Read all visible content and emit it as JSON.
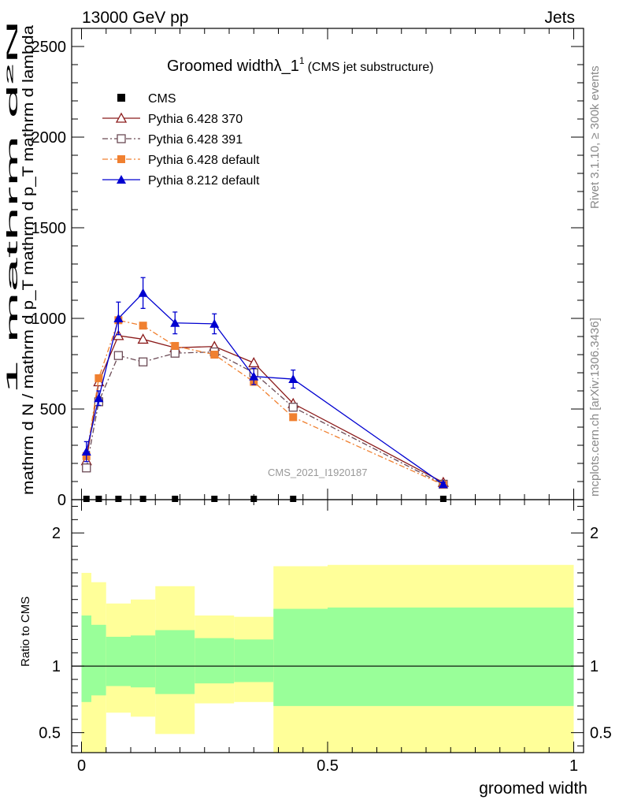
{
  "header": {
    "left": "13000 GeV pp",
    "right": "Jets"
  },
  "side_labels": {
    "rivet": "Rivet 3.1.10, ≥ 300k events",
    "mcplots": "mcplots.cern.ch [arXiv:1306.3436]"
  },
  "colors": {
    "cms": "#000000",
    "py370": "#8b1a1a",
    "py391": "#6b4a55",
    "pydefault": "#f08030",
    "py8": "#0000d0",
    "band_inner": "#99ff99",
    "band_outer": "#ffff99"
  },
  "chart_data": [
    {
      "type": "line",
      "title": "Groomed widthλ_1",
      "title_sup": "1",
      "subtitle": "(CMS jet substructure)",
      "watermark": "CMS_2021_I1920187",
      "ylabel_numerator": "1    mathrm d²N",
      "ylabel_denominator": "mathrm d N / mathrm d p_T mathrm d p_T mathrm d lambda",
      "xlim": [
        -0.02,
        1.02
      ],
      "ylim": [
        0,
        2600
      ],
      "yticks": [
        0,
        500,
        1000,
        1500,
        2000,
        2500
      ],
      "ytick_labels": [
        "0",
        "500",
        "1000",
        "1500",
        "2000",
        "2500"
      ],
      "legend_position": "top-left",
      "x": [
        0.01,
        0.035,
        0.075,
        0.125,
        0.19,
        0.27,
        0.35,
        0.43,
        0.735
      ],
      "series": [
        {
          "name": "CMS",
          "key": "cms",
          "marker": "square-filled",
          "dash": "none",
          "values": [
            0,
            0,
            0,
            0,
            0,
            0,
            0,
            0,
            0
          ]
        },
        {
          "name": "Pythia 6.428 370",
          "key": "py370",
          "marker": "triangle-open",
          "dash": "solid",
          "values": [
            215,
            650,
            905,
            885,
            838,
            845,
            755,
            530,
            95
          ]
        },
        {
          "name": "Pythia 6.428 391",
          "key": "py391",
          "marker": "square-open",
          "dash": "dashdot",
          "values": [
            175,
            540,
            795,
            760,
            808,
            815,
            700,
            510,
            85
          ]
        },
        {
          "name": "Pythia 6.428 default",
          "key": "pydefault",
          "marker": "square-filled",
          "dash": "dashdot",
          "values": [
            240,
            670,
            990,
            960,
            848,
            800,
            650,
            455,
            82
          ]
        },
        {
          "name": "Pythia 8.212 default",
          "key": "py8",
          "marker": "triangle-filled",
          "dash": "solid",
          "values": [
            265,
            560,
            1000,
            1140,
            975,
            970,
            680,
            665,
            85
          ],
          "errors": [
            55,
            40,
            90,
            85,
            60,
            55,
            45,
            50,
            12
          ]
        }
      ]
    },
    {
      "type": "area",
      "ylabel": "Ratio to CMS",
      "xlabel": "groomed width",
      "xlim": [
        -0.02,
        1.02
      ],
      "ylim": [
        0.35,
        2.25
      ],
      "yticks": [
        0.5,
        1,
        2
      ],
      "ytick_labels": [
        "0.5",
        "1",
        "2"
      ],
      "xticks": [
        0,
        0.5,
        1
      ],
      "xtick_labels": [
        "0",
        "0.5",
        "1"
      ],
      "reference_line": 1,
      "bins": [
        {
          "lo": 0.0,
          "hi": 0.02,
          "outer": [
            0.35,
            1.7
          ],
          "inner": [
            0.73,
            1.38
          ]
        },
        {
          "lo": 0.02,
          "hi": 0.05,
          "outer": [
            0.35,
            1.63
          ],
          "inner": [
            0.78,
            1.31
          ]
        },
        {
          "lo": 0.05,
          "hi": 0.1,
          "outer": [
            0.65,
            1.47
          ],
          "inner": [
            0.85,
            1.22
          ]
        },
        {
          "lo": 0.1,
          "hi": 0.15,
          "outer": [
            0.62,
            1.5
          ],
          "inner": [
            0.84,
            1.23
          ]
        },
        {
          "lo": 0.15,
          "hi": 0.23,
          "outer": [
            0.49,
            1.6
          ],
          "inner": [
            0.79,
            1.27
          ]
        },
        {
          "lo": 0.23,
          "hi": 0.31,
          "outer": [
            0.72,
            1.38
          ],
          "inner": [
            0.87,
            1.21
          ]
        },
        {
          "lo": 0.31,
          "hi": 0.39,
          "outer": [
            0.73,
            1.37
          ],
          "inner": [
            0.88,
            1.2
          ]
        },
        {
          "lo": 0.39,
          "hi": 0.5,
          "outer": [
            0.35,
            1.75
          ],
          "inner": [
            0.7,
            1.43
          ]
        },
        {
          "lo": 0.5,
          "hi": 1.0,
          "outer": [
            0.35,
            1.76
          ],
          "inner": [
            0.7,
            1.44
          ]
        }
      ]
    }
  ]
}
